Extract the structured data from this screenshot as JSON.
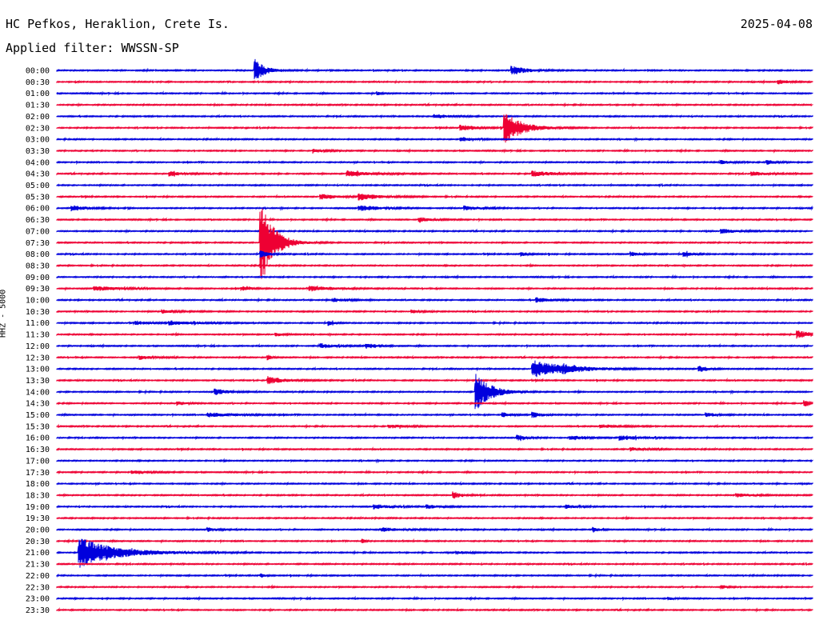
{
  "header": {
    "station": "HC Pefkos, Heraklion, Crete Is.",
    "date": "2025-04-08",
    "filter_label": "Applied filter: WWSSN-SP"
  },
  "chart_data": {
    "type": "line",
    "title": "HC Pefkos, Heraklion, Crete Is.",
    "subtitle": "Applied filter: WWSSN-SP",
    "ylabel": "HHZ - 5000",
    "ylabel_parts": [
      "HHZ",
      "-",
      "5000"
    ],
    "row_labels": [
      "00:00",
      "00:30",
      "01:00",
      "01:30",
      "02:00",
      "02:30",
      "03:00",
      "03:30",
      "04:00",
      "04:30",
      "05:00",
      "05:30",
      "06:00",
      "06:30",
      "07:00",
      "07:30",
      "08:00",
      "08:30",
      "09:00",
      "09:30",
      "10:00",
      "10:30",
      "11:00",
      "11:30",
      "12:00",
      "12:30",
      "13:00",
      "13:30",
      "14:00",
      "14:30",
      "15:00",
      "15:30",
      "16:00",
      "16:30",
      "17:00",
      "17:30",
      "18:00",
      "18:30",
      "19:00",
      "19:30",
      "20:00",
      "20:30",
      "21:00",
      "21:30",
      "22:00",
      "22:30",
      "23:00",
      "23:30"
    ],
    "row_minutes": 30,
    "colors": [
      "#0000dd",
      "#ee0033"
    ],
    "grid": false,
    "legend": "none",
    "events": [
      {
        "row": 0,
        "t": 0.263,
        "amp": 1.8,
        "width": 0.012
      },
      {
        "row": 0,
        "t": 0.603,
        "amp": 0.7,
        "width": 0.018
      },
      {
        "row": 1,
        "t": 0.955,
        "amp": 0.35,
        "width": 0.012
      },
      {
        "row": 2,
        "t": 0.425,
        "amp": 0.3,
        "width": 0.004
      },
      {
        "row": 4,
        "t": 0.5,
        "amp": 0.35,
        "width": 0.02
      },
      {
        "row": 5,
        "t": 0.535,
        "amp": 0.45,
        "width": 0.02
      },
      {
        "row": 5,
        "t": 0.593,
        "amp": 2.5,
        "width": 0.022
      },
      {
        "row": 6,
        "t": 0.535,
        "amp": 0.35,
        "width": 0.015
      },
      {
        "row": 7,
        "t": 0.34,
        "amp": 0.25,
        "width": 0.015
      },
      {
        "row": 8,
        "t": 0.88,
        "amp": 0.3,
        "width": 0.01
      },
      {
        "row": 8,
        "t": 0.94,
        "amp": 0.35,
        "width": 0.01
      },
      {
        "row": 9,
        "t": 0.15,
        "amp": 0.35,
        "width": 0.018
      },
      {
        "row": 9,
        "t": 0.385,
        "amp": 0.45,
        "width": 0.03
      },
      {
        "row": 9,
        "t": 0.63,
        "amp": 0.45,
        "width": 0.025
      },
      {
        "row": 9,
        "t": 0.92,
        "amp": 0.3,
        "width": 0.02
      },
      {
        "row": 11,
        "t": 0.35,
        "amp": 0.4,
        "width": 0.02
      },
      {
        "row": 11,
        "t": 0.4,
        "amp": 0.55,
        "width": 0.025
      },
      {
        "row": 12,
        "t": 0.02,
        "amp": 0.45,
        "width": 0.02
      },
      {
        "row": 12,
        "t": 0.4,
        "amp": 0.45,
        "width": 0.025
      },
      {
        "row": 12,
        "t": 0.54,
        "amp": 0.35,
        "width": 0.02
      },
      {
        "row": 13,
        "t": 0.48,
        "amp": 0.4,
        "width": 0.015
      },
      {
        "row": 14,
        "t": 0.88,
        "amp": 0.35,
        "width": 0.02
      },
      {
        "row": 15,
        "t": 0.27,
        "amp": 7.0,
        "width": 0.016
      },
      {
        "row": 16,
        "t": 0.27,
        "amp": 0.55,
        "width": 0.01
      },
      {
        "row": 16,
        "t": 0.615,
        "amp": 0.3,
        "width": 0.01
      },
      {
        "row": 16,
        "t": 0.76,
        "amp": 0.35,
        "width": 0.012
      },
      {
        "row": 16,
        "t": 0.83,
        "amp": 0.45,
        "width": 0.01
      },
      {
        "row": 19,
        "t": 0.05,
        "amp": 0.35,
        "width": 0.035
      },
      {
        "row": 19,
        "t": 0.245,
        "amp": 0.35,
        "width": 0.012
      },
      {
        "row": 19,
        "t": 0.335,
        "amp": 0.4,
        "width": 0.03
      },
      {
        "row": 20,
        "t": 0.365,
        "amp": 0.3,
        "width": 0.015
      },
      {
        "row": 20,
        "t": 0.635,
        "amp": 0.35,
        "width": 0.02
      },
      {
        "row": 21,
        "t": 0.14,
        "amp": 0.3,
        "width": 0.02
      },
      {
        "row": 21,
        "t": 0.47,
        "amp": 0.25,
        "width": 0.01
      },
      {
        "row": 22,
        "t": 0.105,
        "amp": 0.3,
        "width": 0.015
      },
      {
        "row": 22,
        "t": 0.15,
        "amp": 0.35,
        "width": 0.03
      },
      {
        "row": 22,
        "t": 0.36,
        "amp": 0.45,
        "width": 0.006
      },
      {
        "row": 23,
        "t": 0.29,
        "amp": 0.3,
        "width": 0.01
      },
      {
        "row": 23,
        "t": 0.98,
        "amp": 0.6,
        "width": 0.02
      },
      {
        "row": 24,
        "t": 0.35,
        "amp": 0.35,
        "width": 0.02
      },
      {
        "row": 24,
        "t": 0.41,
        "amp": 0.4,
        "width": 0.012
      },
      {
        "row": 25,
        "t": 0.11,
        "amp": 0.3,
        "width": 0.02
      },
      {
        "row": 25,
        "t": 0.28,
        "amp": 0.45,
        "width": 0.004
      },
      {
        "row": 26,
        "t": 0.63,
        "amp": 1.4,
        "width": 0.04
      },
      {
        "row": 26,
        "t": 0.67,
        "amp": 0.9,
        "width": 0.03
      },
      {
        "row": 26,
        "t": 0.85,
        "amp": 0.5,
        "width": 0.01
      },
      {
        "row": 27,
        "t": 0.28,
        "amp": 0.6,
        "width": 0.02
      },
      {
        "row": 28,
        "t": 0.21,
        "amp": 0.5,
        "width": 0.015
      },
      {
        "row": 28,
        "t": 0.555,
        "amp": 3.0,
        "width": 0.018
      },
      {
        "row": 29,
        "t": 0.16,
        "amp": 0.3,
        "width": 0.012
      },
      {
        "row": 29,
        "t": 0.99,
        "amp": 0.45,
        "width": 0.012
      },
      {
        "row": 30,
        "t": 0.2,
        "amp": 0.35,
        "width": 0.035
      },
      {
        "row": 30,
        "t": 0.59,
        "amp": 0.35,
        "width": 0.012
      },
      {
        "row": 30,
        "t": 0.63,
        "amp": 0.45,
        "width": 0.012
      },
      {
        "row": 30,
        "t": 0.86,
        "amp": 0.3,
        "width": 0.012
      },
      {
        "row": 31,
        "t": 0.44,
        "amp": 0.3,
        "width": 0.02
      },
      {
        "row": 31,
        "t": 0.72,
        "amp": 0.3,
        "width": 0.02
      },
      {
        "row": 32,
        "t": 0.61,
        "amp": 0.4,
        "width": 0.012
      },
      {
        "row": 32,
        "t": 0.68,
        "amp": 0.35,
        "width": 0.02
      },
      {
        "row": 32,
        "t": 0.745,
        "amp": 0.4,
        "width": 0.025
      },
      {
        "row": 33,
        "t": 0.76,
        "amp": 0.25,
        "width": 0.02
      },
      {
        "row": 35,
        "t": 0.1,
        "amp": 0.25,
        "width": 0.02
      },
      {
        "row": 37,
        "t": 0.525,
        "amp": 0.55,
        "width": 0.01
      },
      {
        "row": 37,
        "t": 0.9,
        "amp": 0.3,
        "width": 0.02
      },
      {
        "row": 38,
        "t": 0.42,
        "amp": 0.35,
        "width": 0.02
      },
      {
        "row": 38,
        "t": 0.49,
        "amp": 0.35,
        "width": 0.015
      },
      {
        "row": 38,
        "t": 0.675,
        "amp": 0.3,
        "width": 0.012
      },
      {
        "row": 40,
        "t": 0.2,
        "amp": 0.35,
        "width": 0.012
      },
      {
        "row": 40,
        "t": 0.43,
        "amp": 0.3,
        "width": 0.03
      },
      {
        "row": 40,
        "t": 0.71,
        "amp": 0.5,
        "width": 0.006
      },
      {
        "row": 41,
        "t": 0.405,
        "amp": 0.3,
        "width": 0.004
      },
      {
        "row": 42,
        "t": 0.03,
        "amp": 2.4,
        "width": 0.045
      },
      {
        "row": 42,
        "t": 0.53,
        "amp": 0.25,
        "width": 0.015
      },
      {
        "row": 44,
        "t": 0.27,
        "amp": 0.25,
        "width": 0.008
      },
      {
        "row": 45,
        "t": 0.88,
        "amp": 0.25,
        "width": 0.008
      },
      {
        "row": 46,
        "t": 0.81,
        "amp": 0.25,
        "width": 0.008
      }
    ]
  }
}
